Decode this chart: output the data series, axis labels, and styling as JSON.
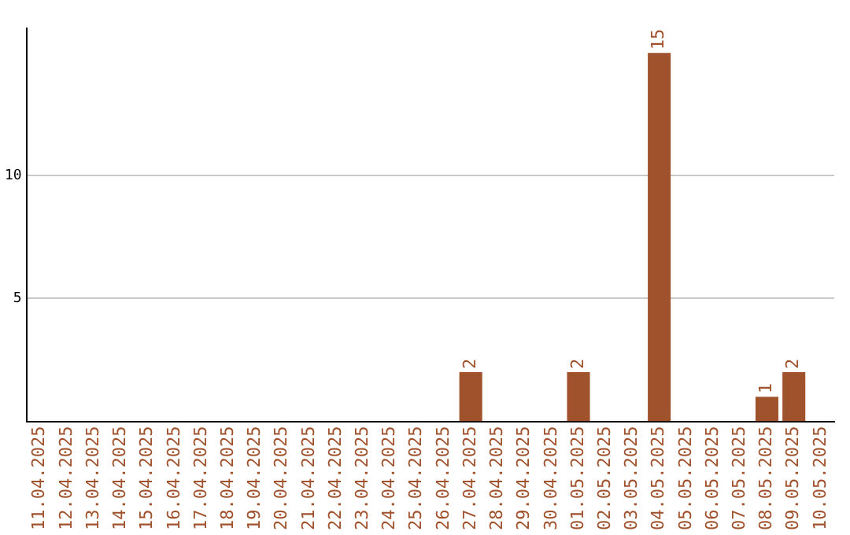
{
  "chart_data": {
    "type": "bar",
    "categories": [
      "11.04.2025",
      "12.04.2025",
      "13.04.2025",
      "14.04.2025",
      "15.04.2025",
      "16.04.2025",
      "17.04.2025",
      "18.04.2025",
      "19.04.2025",
      "20.04.2025",
      "21.04.2025",
      "22.04.2025",
      "23.04.2025",
      "24.04.2025",
      "25.04.2025",
      "26.04.2025",
      "27.04.2025",
      "28.04.2025",
      "29.04.2025",
      "30.04.2025",
      "01.05.2025",
      "02.05.2025",
      "03.05.2025",
      "04.05.2025",
      "05.05.2025",
      "06.05.2025",
      "07.05.2025",
      "08.05.2025",
      "09.05.2025",
      "10.05.2025"
    ],
    "values": [
      0,
      0,
      0,
      0,
      0,
      0,
      0,
      0,
      0,
      0,
      0,
      0,
      0,
      0,
      0,
      0,
      2,
      0,
      0,
      0,
      2,
      0,
      0,
      15,
      0,
      0,
      0,
      1,
      2,
      0
    ],
    "value_labels": [
      null,
      null,
      null,
      null,
      null,
      null,
      null,
      null,
      null,
      null,
      null,
      null,
      null,
      null,
      null,
      null,
      "2",
      null,
      null,
      null,
      "2",
      null,
      null,
      "15",
      null,
      null,
      null,
      "1",
      "2",
      null
    ],
    "color": "#a0522d",
    "ylim": [
      0,
      16
    ],
    "yticks": [
      5,
      10
    ],
    "grid": "y",
    "legend": false
  }
}
